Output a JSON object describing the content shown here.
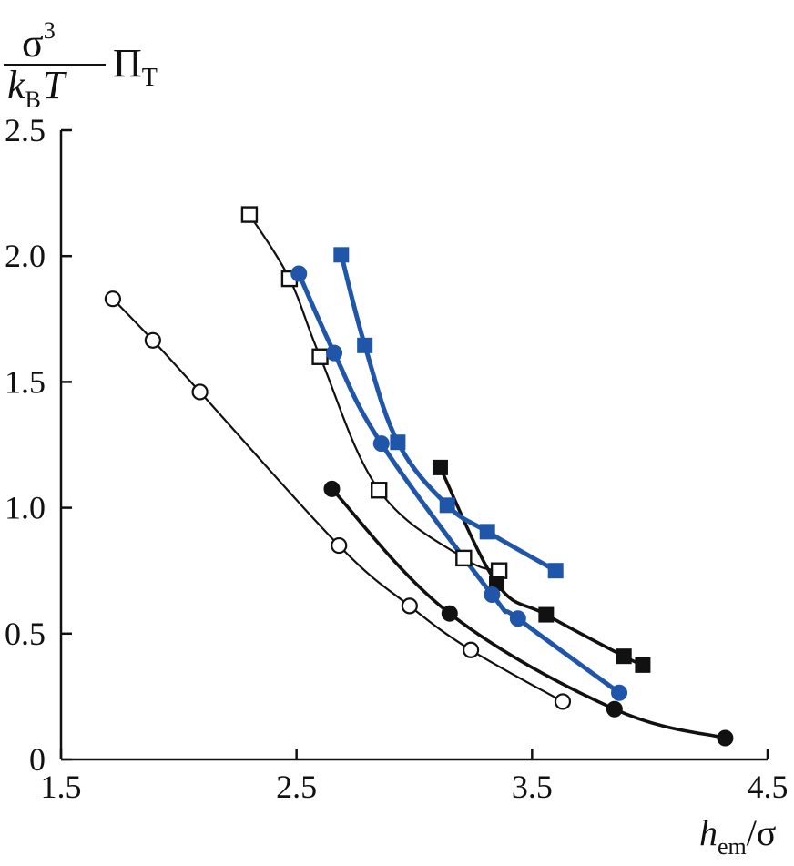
{
  "chart_data": {
    "type": "scatter",
    "title": "",
    "ylabel": {
      "numerator": "σ",
      "numerator_sup": "3",
      "denominator_k": "k",
      "denominator_sub": "B",
      "denominator_T": "T",
      "suffix": "Π",
      "suffix_sub": "T"
    },
    "xlabel": {
      "main": "h",
      "sub": "em",
      "suffix": "/σ"
    },
    "xlim": [
      1.5,
      4.5
    ],
    "ylim": [
      0,
      2.5
    ],
    "x_ticks": [
      1.5,
      2.5,
      3.5,
      4.5
    ],
    "x_tick_labels": [
      "1.5",
      "2.5",
      "3.5",
      "4.5"
    ],
    "y_ticks": [
      0,
      0.5,
      1.0,
      1.5,
      2.0,
      2.5
    ],
    "y_tick_labels": [
      "0",
      "0.5",
      "1.0",
      "1.5",
      "2.0",
      "2.5"
    ],
    "grid": false,
    "legend": "none",
    "series": [
      {
        "marker": "open-circle",
        "color": "#111111",
        "line_width": 2.2,
        "x": [
          1.72,
          1.89,
          2.09,
          2.68,
          2.98,
          3.24,
          3.63
        ],
        "y": [
          1.83,
          1.665,
          1.46,
          0.85,
          0.61,
          0.435,
          0.23
        ]
      },
      {
        "marker": "open-square",
        "color": "#111111",
        "line_width": 2.2,
        "x": [
          2.3,
          2.47,
          2.6,
          2.85,
          3.21,
          3.36
        ],
        "y": [
          2.165,
          1.91,
          1.6,
          1.07,
          0.8,
          0.75
        ]
      },
      {
        "marker": "filled-circle",
        "color": "#111111",
        "line_width": 3.6,
        "x": [
          2.65,
          3.15,
          3.85,
          4.32
        ],
        "y": [
          1.075,
          0.58,
          0.2,
          0.085
        ]
      },
      {
        "marker": "filled-square",
        "color": "#111111",
        "line_width": 3.6,
        "x": [
          3.11,
          3.35,
          3.56,
          3.89,
          3.97
        ],
        "y": [
          1.16,
          0.7,
          0.575,
          0.41,
          0.375
        ]
      },
      {
        "marker": "filled-circle",
        "color": "#1f56aa",
        "line_width": 5,
        "x": [
          2.51,
          2.66,
          2.86,
          3.33,
          3.44,
          3.87
        ],
        "y": [
          1.93,
          1.615,
          1.255,
          0.655,
          0.56,
          0.265
        ]
      },
      {
        "marker": "filled-square",
        "color": "#1f56aa",
        "line_width": 5,
        "x": [
          2.69,
          2.79,
          2.93,
          3.14,
          3.31,
          3.6
        ],
        "y": [
          2.005,
          1.645,
          1.26,
          1.01,
          0.905,
          0.75
        ]
      }
    ]
  }
}
